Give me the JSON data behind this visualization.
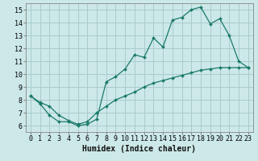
{
  "xlabel": "Humidex (Indice chaleur)",
  "bg_color": "#cce8e8",
  "grid_color": "#aacccc",
  "line_color": "#1a7a6a",
  "xlim": [
    -0.5,
    23.5
  ],
  "ylim": [
    5.5,
    15.5
  ],
  "xticks": [
    0,
    1,
    2,
    3,
    4,
    5,
    6,
    7,
    8,
    9,
    10,
    11,
    12,
    13,
    14,
    15,
    16,
    17,
    18,
    19,
    20,
    21,
    22,
    23
  ],
  "yticks": [
    6,
    7,
    8,
    9,
    10,
    11,
    12,
    13,
    14,
    15
  ],
  "line1_x": [
    0,
    1,
    2,
    3,
    4,
    5,
    6,
    7,
    8,
    9,
    10,
    11,
    12,
    13,
    14,
    15,
    16,
    17,
    18,
    19,
    20,
    21,
    22,
    23
  ],
  "line1_y": [
    8.3,
    7.7,
    6.8,
    6.3,
    6.3,
    6.0,
    6.1,
    6.5,
    9.4,
    9.8,
    10.4,
    11.5,
    11.3,
    12.8,
    12.1,
    14.2,
    14.4,
    15.0,
    15.2,
    13.9,
    14.3,
    13.0,
    11.0,
    10.5
  ],
  "line2_x": [
    0,
    1,
    2,
    3,
    4,
    5,
    6,
    7,
    8,
    9,
    10,
    11,
    12,
    13,
    14,
    15,
    16,
    17,
    18,
    19,
    20,
    21,
    22,
    23
  ],
  "line2_y": [
    8.3,
    7.8,
    7.5,
    6.8,
    6.4,
    6.1,
    6.3,
    7.0,
    7.5,
    8.0,
    8.3,
    8.6,
    9.0,
    9.3,
    9.5,
    9.7,
    9.9,
    10.1,
    10.3,
    10.4,
    10.5,
    10.5,
    10.5,
    10.5
  ],
  "tick_fontsize": 6,
  "xlabel_fontsize": 7
}
